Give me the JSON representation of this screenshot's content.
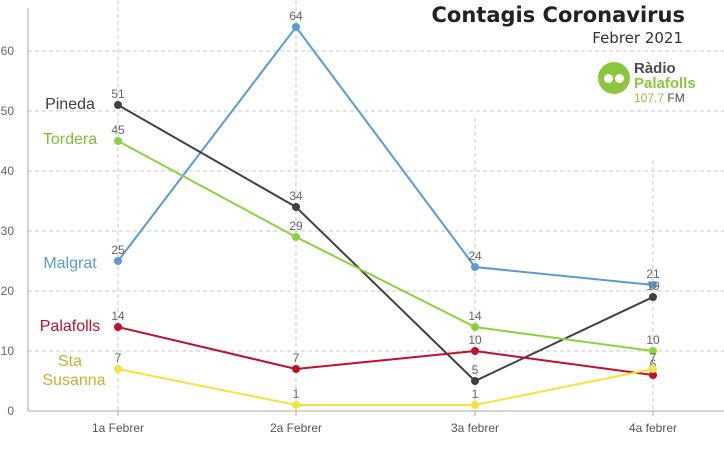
{
  "chart_data": {
    "type": "line",
    "title": "Contagis Coronavirus",
    "subtitle": "Febrer 2021",
    "categories": [
      "1a Febrer",
      "2a Febrer",
      "3a febrer",
      "4a febrer"
    ],
    "ylim": [
      0,
      68
    ],
    "yticks": [
      0,
      10,
      20,
      30,
      40,
      50,
      60
    ],
    "grid": true,
    "series": [
      {
        "name": "Malgrat",
        "color": "#5b9bd5",
        "values": [
          25,
          64,
          24,
          21
        ]
      },
      {
        "name": "Pineda",
        "color": "#404040",
        "values": [
          51,
          34,
          5,
          19
        ]
      },
      {
        "name": "Tordera",
        "color": "#8cd23f",
        "values": [
          45,
          29,
          14,
          10
        ]
      },
      {
        "name": "Palafolls",
        "color": "#c0102c",
        "values": [
          14,
          7,
          10,
          6
        ]
      },
      {
        "name": "Sta Susanna",
        "color": "#f2e43a",
        "values": [
          7,
          1,
          1,
          7
        ]
      }
    ],
    "series_labels": [
      {
        "text": "Pineda",
        "color": "#404040"
      },
      {
        "text": "Tordera",
        "color": "#7cc034"
      },
      {
        "text": "Malgrat",
        "color": "#5b9bd5"
      },
      {
        "text": "Palafolls",
        "color": "#c0102c"
      },
      {
        "text": "Sta",
        "color": "#c8b030"
      },
      {
        "text": "Susanna",
        "color": "#c8b030"
      }
    ]
  },
  "logo": {
    "line1": "Ràdio",
    "line2": "Palafolls",
    "freq": "107.7",
    "band": "FM"
  }
}
